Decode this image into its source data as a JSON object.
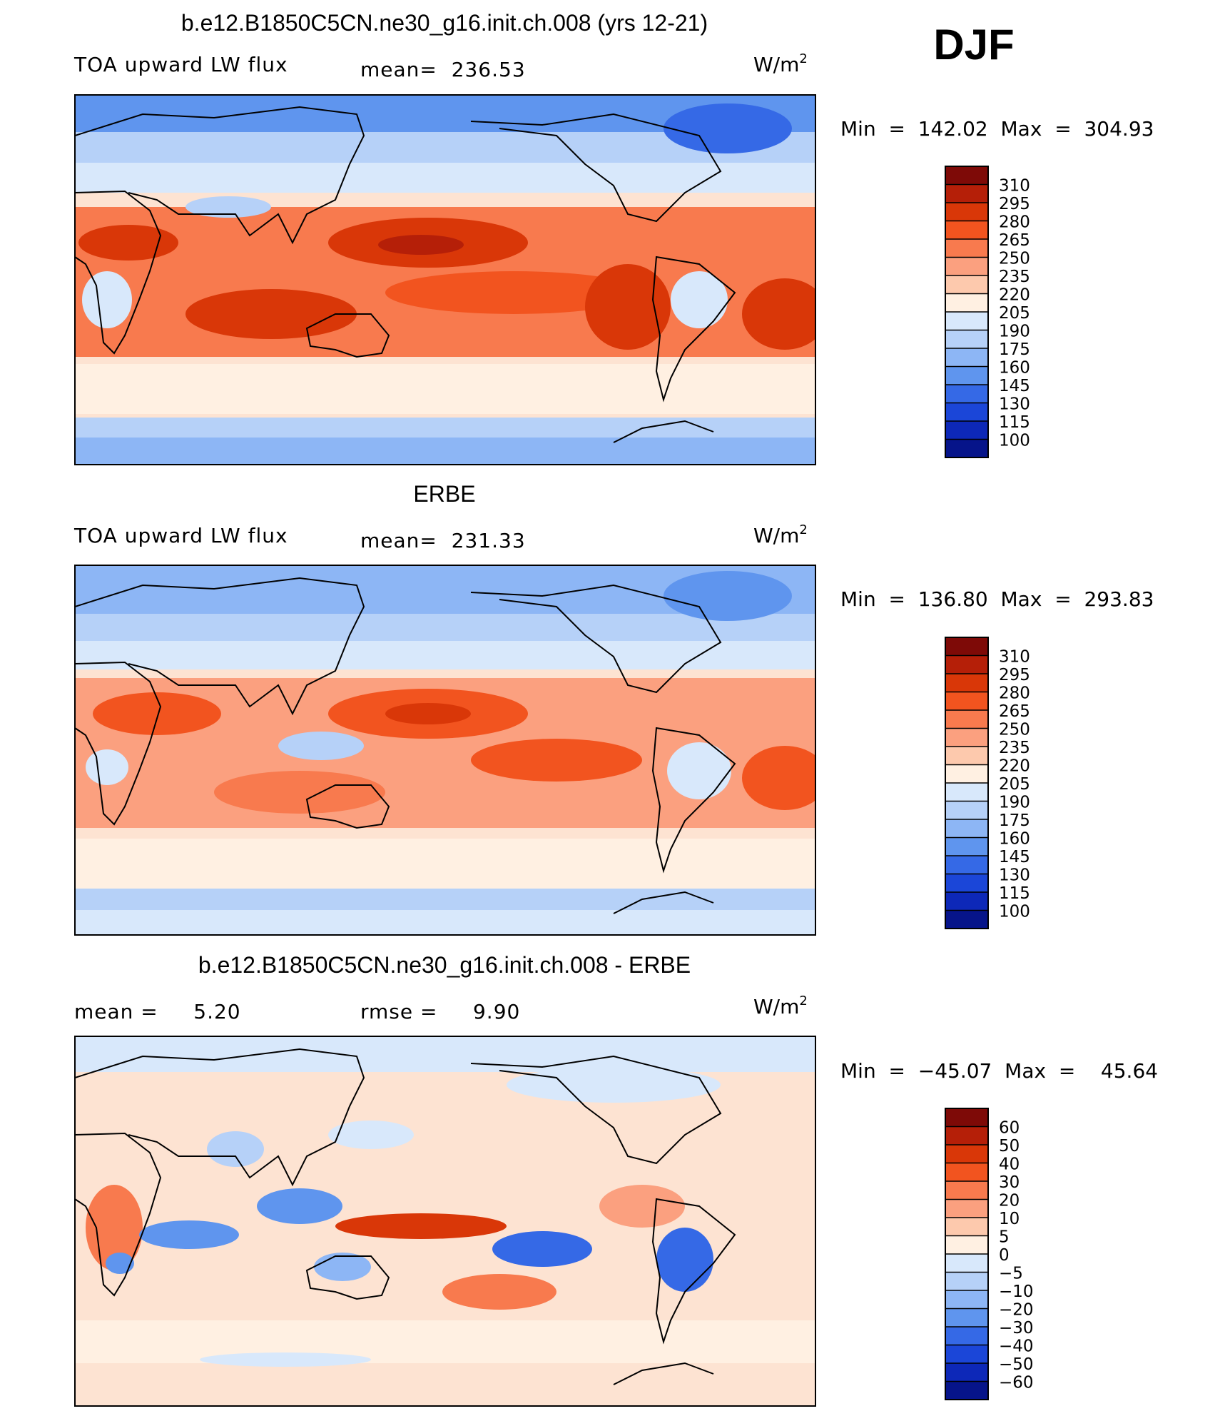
{
  "season": "DJF",
  "chart_data": [
    {
      "type": "heatmap",
      "title": "b.e12.B1850C5CN.ne30_g16.init.ch.008 (yrs 12-21)",
      "left_label": "TOA upward LW flux",
      "stat_text": "mean=  236.53",
      "units_base": "W/m",
      "units_exp": "2",
      "min_max_text": "Min  =  142.02  Max  =  304.93",
      "min": 142.02,
      "max": 304.93,
      "mean": 236.53,
      "colorbar": {
        "levels": [
          "310",
          "295",
          "280",
          "265",
          "250",
          "235",
          "220",
          "205",
          "190",
          "175",
          "160",
          "145",
          "130",
          "115",
          "100"
        ],
        "colors": [
          "#7e0a07",
          "#b51f08",
          "#d93708",
          "#f2541f",
          "#f87a4e",
          "#fba07f",
          "#fdc9ad",
          "#fff0e2",
          "#d8e8fb",
          "#b6d1f8",
          "#8db6f5",
          "#5f95ee",
          "#3569e6",
          "#1b46d8",
          "#0d28b8",
          "#06148a"
        ]
      }
    },
    {
      "type": "heatmap",
      "title": "ERBE",
      "left_label": "TOA upward LW flux",
      "stat_text": "mean=  231.33",
      "units_base": "W/m",
      "units_exp": "2",
      "min_max_text": "Min  =  136.80  Max  =  293.83",
      "min": 136.8,
      "max": 293.83,
      "mean": 231.33,
      "colorbar": {
        "levels": [
          "310",
          "295",
          "280",
          "265",
          "250",
          "235",
          "220",
          "205",
          "190",
          "175",
          "160",
          "145",
          "130",
          "115",
          "100"
        ],
        "colors": [
          "#7e0a07",
          "#b51f08",
          "#d93708",
          "#f2541f",
          "#f87a4e",
          "#fba07f",
          "#fdc9ad",
          "#fff0e2",
          "#d8e8fb",
          "#b6d1f8",
          "#8db6f5",
          "#5f95ee",
          "#3569e6",
          "#1b46d8",
          "#0d28b8",
          "#06148a"
        ]
      }
    },
    {
      "type": "heatmap",
      "title": "b.e12.B1850C5CN.ne30_g16.init.ch.008 - ERBE",
      "left_label": "mean =     5.20",
      "stat_text": "rmse =     9.90",
      "units_base": "W/m",
      "units_exp": "2",
      "min_max_text": "Min  =  −45.07  Max  =    45.64",
      "min": -45.07,
      "max": 45.64,
      "mean": 5.2,
      "rmse": 9.9,
      "colorbar": {
        "levels": [
          "60",
          "50",
          "40",
          "30",
          "20",
          "10",
          "5",
          "0",
          "−5",
          "−10",
          "−20",
          "−30",
          "−40",
          "−50",
          "−60"
        ],
        "colors": [
          "#7e0a07",
          "#b51f08",
          "#d93708",
          "#f2541f",
          "#f87a4e",
          "#fba07f",
          "#fdc9ad",
          "#fff0e2",
          "#d8e8fb",
          "#b6d1f8",
          "#8db6f5",
          "#5f95ee",
          "#3569e6",
          "#1b46d8",
          "#0d28b8",
          "#06148a"
        ]
      }
    }
  ]
}
